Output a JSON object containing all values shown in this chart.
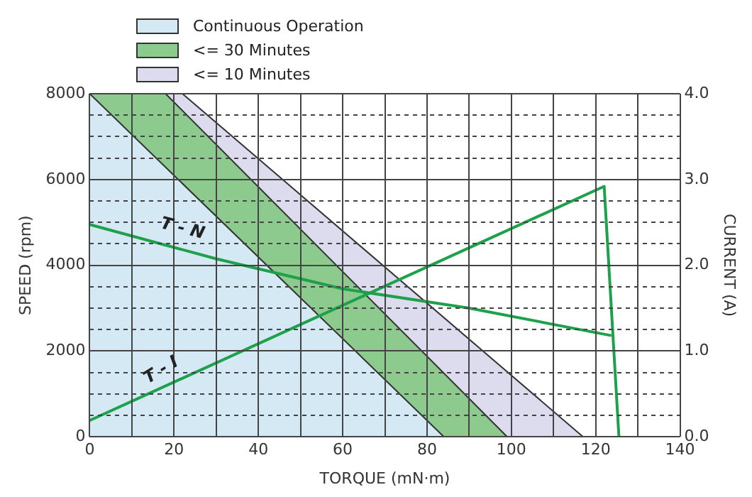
{
  "chart_data": {
    "type": "area",
    "xlabel": "TORQUE (mN·m)",
    "ylabel": "SPEED (rpm)",
    "y2label": "CURRENT (A)",
    "xlim": [
      0,
      140
    ],
    "xticks": [
      0,
      {
        "value": 10,
        "label": null
      },
      20,
      {
        "value": 30,
        "label": null
      },
      40,
      {
        "value": 50,
        "label": null
      },
      60,
      {
        "value": 70,
        "label": null
      },
      80,
      {
        "value": 90,
        "label": null
      },
      100,
      {
        "value": 110,
        "label": null
      },
      120,
      {
        "value": 130,
        "label": null
      },
      140
    ],
    "ylim": [
      0,
      8000
    ],
    "yticks": [
      0,
      {
        "value": 500,
        "label": null
      },
      {
        "value": 1000,
        "label": null
      },
      {
        "value": 1500,
        "label": null
      },
      2000,
      {
        "value": 2500,
        "label": null
      },
      {
        "value": 3000,
        "label": null
      },
      {
        "value": 3500,
        "label": null
      },
      4000,
      {
        "value": 4500,
        "label": null
      },
      {
        "value": 5000,
        "label": null
      },
      {
        "value": 5500,
        "label": null
      },
      6000,
      {
        "value": 6500,
        "label": null
      },
      {
        "value": 7000,
        "label": null
      },
      {
        "value": 7500,
        "label": null
      },
      8000
    ],
    "y2lim": [
      0,
      4
    ],
    "y2ticks": [
      {
        "value": 0,
        "label": "0.0"
      },
      {
        "value": 1,
        "label": "1.0"
      },
      {
        "value": 2,
        "label": "2.0"
      },
      {
        "value": 3,
        "label": "3.0"
      },
      {
        "value": 4,
        "label": "4.0"
      }
    ],
    "grid": true,
    "legend": "top left",
    "series": [
      {
        "name": "Continuous Operation",
        "color": "#d5e9f4",
        "x": [
          0,
          84
        ],
        "values": [
          8000,
          0
        ]
      },
      {
        "name": "<= 30 Minutes",
        "color": "#8dca8d",
        "x": [
          0,
          18,
          99
        ],
        "values": [
          8000,
          8000,
          0
        ]
      },
      {
        "name": "<= 10 Minutes",
        "color": "#dcdcee",
        "x": [
          0,
          22,
          117
        ],
        "values": [
          8000,
          8000,
          0
        ]
      },
      {
        "type": "line",
        "color": "#1ea14b",
        "x": [
          0,
          30,
          60,
          90,
          123.7
        ],
        "values": [
          4950,
          4150,
          3450,
          3000,
          2360
        ]
      },
      {
        "type": "line",
        "axis": "y2",
        "color": "#1ea14b",
        "x": [
          0,
          122,
          125.5
        ],
        "values": [
          0.19,
          2.92,
          0
        ]
      }
    ],
    "annotations": [
      {
        "text": "T - N",
        "x": 22,
        "y": 4550
      },
      {
        "text": "T - I",
        "x": 17,
        "y": 1150
      }
    ]
  }
}
